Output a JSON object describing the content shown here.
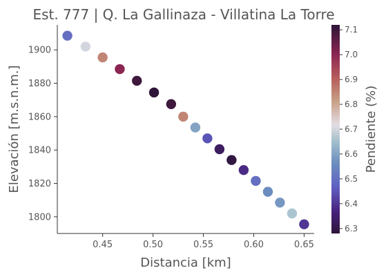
{
  "chart_data": {
    "type": "scatter",
    "title": "Est. 777 | Q. La Gallinaza - Villatina La Torre",
    "xlabel": "Distancia [km]",
    "ylabel": "Elevación [m.s.n.m.]",
    "colorbar_label": "Pendiente (%)",
    "xlim": [
      0.405,
      0.66
    ],
    "ylim": [
      1790,
      1915
    ],
    "x_ticks": [
      {
        "value": 0.45,
        "label": "0.45"
      },
      {
        "value": 0.5,
        "label": "0.50"
      },
      {
        "value": 0.55,
        "label": "0.55"
      },
      {
        "value": 0.6,
        "label": "0.60"
      },
      {
        "value": 0.65,
        "label": "0.65"
      }
    ],
    "y_ticks": [
      {
        "value": 1800,
        "label": "1800"
      },
      {
        "value": 1820,
        "label": "1820"
      },
      {
        "value": 1840,
        "label": "1840"
      },
      {
        "value": 1860,
        "label": "1860"
      },
      {
        "value": 1880,
        "label": "1880"
      },
      {
        "value": 1900,
        "label": "1900"
      }
    ],
    "color_range": [
      6.28,
      7.12
    ],
    "colorbar_ticks": [
      {
        "value": 6.3,
        "label": "6.3"
      },
      {
        "value": 6.4,
        "label": "6.4"
      },
      {
        "value": 6.5,
        "label": "6.5"
      },
      {
        "value": 6.6,
        "label": "6.6"
      },
      {
        "value": 6.7,
        "label": "6.7"
      },
      {
        "value": 6.8,
        "label": "6.8"
      },
      {
        "value": 6.9,
        "label": "6.9"
      },
      {
        "value": 7.0,
        "label": "7.0"
      },
      {
        "value": 7.1,
        "label": "7.1"
      }
    ],
    "colormap": "twilight_shifted",
    "grid": false,
    "points": [
      {
        "x": 0.415,
        "y": 1908.5,
        "c": 6.5
      },
      {
        "x": 0.433,
        "y": 1902.0,
        "c": 6.7
      },
      {
        "x": 0.45,
        "y": 1895.5,
        "c": 6.85
      },
      {
        "x": 0.467,
        "y": 1888.5,
        "c": 7.0
      },
      {
        "x": 0.484,
        "y": 1881.5,
        "c": 7.1
      },
      {
        "x": 0.501,
        "y": 1874.5,
        "c": 7.12
      },
      {
        "x": 0.518,
        "y": 1867.5,
        "c": 7.1
      },
      {
        "x": 0.53,
        "y": 1860.0,
        "c": 6.85
      },
      {
        "x": 0.542,
        "y": 1853.5,
        "c": 6.6
      },
      {
        "x": 0.554,
        "y": 1847.0,
        "c": 6.45
      },
      {
        "x": 0.566,
        "y": 1840.5,
        "c": 6.33
      },
      {
        "x": 0.578,
        "y": 1834.0,
        "c": 6.29
      },
      {
        "x": 0.59,
        "y": 1828.0,
        "c": 6.38
      },
      {
        "x": 0.602,
        "y": 1821.5,
        "c": 6.5
      },
      {
        "x": 0.614,
        "y": 1815.0,
        "c": 6.56
      },
      {
        "x": 0.626,
        "y": 1808.5,
        "c": 6.58
      },
      {
        "x": 0.638,
        "y": 1802.0,
        "c": 6.66
      },
      {
        "x": 0.65,
        "y": 1795.5,
        "c": 6.4
      }
    ]
  }
}
